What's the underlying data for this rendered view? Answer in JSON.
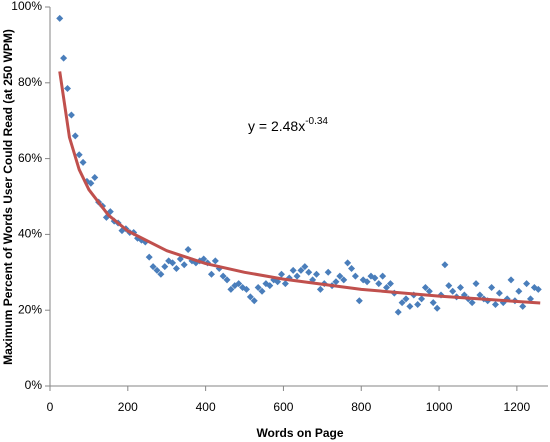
{
  "chart_data": {
    "type": "scatter",
    "xlabel": "Words on Page",
    "ylabel": "Maximum Percent of Words User Could Read (at 250 WPM)",
    "annotation": {
      "text": "y = 2.48x",
      "superscript": "-0.34"
    },
    "xlim": [
      0,
      1280
    ],
    "xticks": [
      0,
      200,
      400,
      600,
      800,
      1000,
      1200
    ],
    "ylim": [
      0,
      100
    ],
    "yticks": [
      {
        "value": 0,
        "label": "0%"
      },
      {
        "value": 20,
        "label": "20%"
      },
      {
        "value": 40,
        "label": "40%"
      },
      {
        "value": 60,
        "label": "60%"
      },
      {
        "value": 80,
        "label": "80%"
      },
      {
        "value": 100,
        "label": "100%"
      }
    ],
    "color": "#4a7ebb",
    "x": [
      25,
      35,
      45,
      55,
      65,
      75,
      85,
      95,
      105,
      115,
      125,
      135,
      145,
      155,
      165,
      175,
      185,
      195,
      205,
      215,
      225,
      235,
      245,
      255,
      265,
      275,
      285,
      295,
      305,
      315,
      325,
      335,
      345,
      355,
      365,
      375,
      385,
      395,
      405,
      415,
      425,
      435,
      445,
      455,
      465,
      475,
      485,
      495,
      505,
      515,
      525,
      535,
      545,
      555,
      565,
      575,
      585,
      595,
      605,
      615,
      625,
      635,
      645,
      655,
      665,
      675,
      685,
      695,
      705,
      715,
      725,
      735,
      745,
      755,
      765,
      775,
      785,
      795,
      805,
      815,
      825,
      835,
      845,
      855,
      865,
      875,
      885,
      895,
      905,
      915,
      925,
      935,
      945,
      955,
      965,
      975,
      985,
      995,
      1005,
      1015,
      1025,
      1035,
      1045,
      1055,
      1065,
      1075,
      1085,
      1095,
      1105,
      1115,
      1125,
      1135,
      1145,
      1155,
      1165,
      1175,
      1185,
      1195,
      1205,
      1215,
      1225,
      1235,
      1245,
      1255
    ],
    "values": [
      97,
      86.5,
      78.5,
      71.5,
      66,
      61,
      59,
      54,
      53.5,
      55,
      48.5,
      47.5,
      44.5,
      46,
      43.5,
      43,
      41,
      41.5,
      40.5,
      40.5,
      39,
      38.5,
      38,
      34,
      31.5,
      30.5,
      29.5,
      31.5,
      33,
      32.5,
      31,
      33.5,
      32,
      36,
      33,
      32.5,
      33,
      33.5,
      32.5,
      29.5,
      33,
      31,
      29,
      28,
      25.5,
      26.5,
      27,
      26,
      25.5,
      23.5,
      22.5,
      26,
      25,
      27,
      26.5,
      28,
      27.5,
      29.5,
      27,
      28.5,
      30.5,
      29,
      30.5,
      31.5,
      30,
      28,
      29.5,
      25.5,
      27,
      30,
      26.5,
      27.5,
      29,
      28,
      32.5,
      31,
      29,
      22.5,
      28,
      27.5,
      29,
      28.5,
      27,
      29,
      26,
      27,
      24.5,
      19.5,
      22,
      23,
      21,
      24,
      21.5,
      23,
      26,
      25,
      22,
      20.5,
      24,
      32,
      26.5,
      25,
      23.5,
      26,
      24,
      23,
      22,
      27,
      24,
      23,
      22.5,
      26,
      21.5,
      24.5,
      22,
      23,
      28,
      22.5,
      25,
      21,
      27,
      23,
      26,
      25.5
    ],
    "trendline": {
      "color": "#c0504d",
      "x": [
        25,
        50,
        75,
        100,
        150,
        200,
        300,
        400,
        500,
        600,
        800,
        1000,
        1260
      ],
      "values": [
        83.0,
        65.6,
        57.1,
        51.8,
        45.1,
        40.9,
        35.7,
        32.3,
        30.0,
        28.2,
        25.5,
        23.7,
        21.9
      ]
    }
  }
}
